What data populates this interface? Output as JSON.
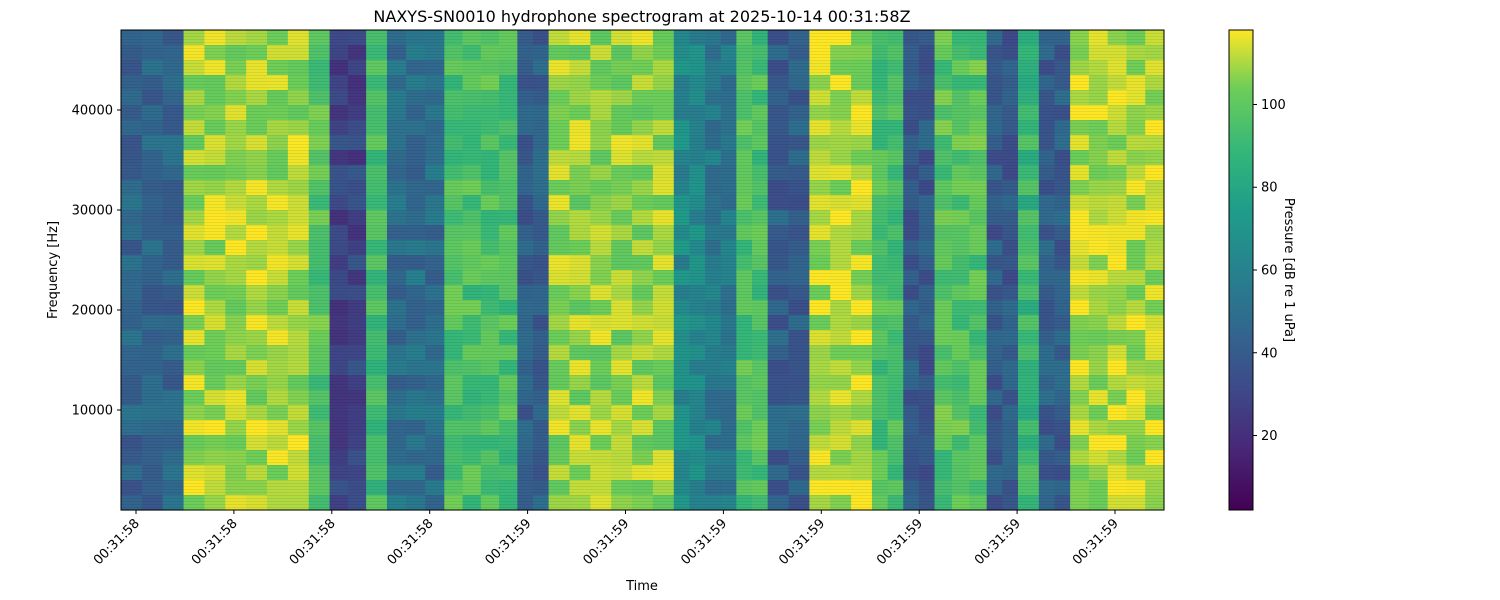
{
  "chart_data": {
    "type": "heatmap",
    "title": "NAXYS-SN0010 hydrophone spectrogram at 2025-10-14 00:31:58Z",
    "xlabel": "Time",
    "ylabel": "Frequency [Hz]",
    "colorbar_label": "Pressure [dB re 1 uPa]",
    "colormap": "viridis",
    "y_range": [
      0,
      48000
    ],
    "y_ticks": [
      10000,
      20000,
      30000,
      40000
    ],
    "x_tick_labels": [
      "00:31:58",
      "00:31:58",
      "00:31:58",
      "00:31:58",
      "00:31:59",
      "00:31:59",
      "00:31:59",
      "00:31:59",
      "00:31:59",
      "00:31:59",
      "00:31:59"
    ],
    "colorbar_range": [
      2,
      118
    ],
    "colorbar_ticks": [
      20,
      40,
      60,
      80,
      100
    ],
    "time_band_levels": [
      {
        "start": 0.0,
        "end": 0.06,
        "level": 45
      },
      {
        "start": 0.06,
        "end": 0.18,
        "level": 110
      },
      {
        "start": 0.18,
        "end": 0.2,
        "level": 98
      },
      {
        "start": 0.2,
        "end": 0.235,
        "level": 30
      },
      {
        "start": 0.235,
        "end": 0.255,
        "level": 95
      },
      {
        "start": 0.255,
        "end": 0.31,
        "level": 50
      },
      {
        "start": 0.31,
        "end": 0.38,
        "level": 96
      },
      {
        "start": 0.38,
        "end": 0.41,
        "level": 42
      },
      {
        "start": 0.41,
        "end": 0.53,
        "level": 108
      },
      {
        "start": 0.53,
        "end": 0.56,
        "level": 65
      },
      {
        "start": 0.56,
        "end": 0.59,
        "level": 55
      },
      {
        "start": 0.59,
        "end": 0.62,
        "level": 96
      },
      {
        "start": 0.62,
        "end": 0.66,
        "level": 42
      },
      {
        "start": 0.66,
        "end": 0.72,
        "level": 112
      },
      {
        "start": 0.72,
        "end": 0.75,
        "level": 95
      },
      {
        "start": 0.75,
        "end": 0.78,
        "level": 40
      },
      {
        "start": 0.78,
        "end": 0.83,
        "level": 98
      },
      {
        "start": 0.83,
        "end": 0.86,
        "level": 40
      },
      {
        "start": 0.86,
        "end": 0.88,
        "level": 90
      },
      {
        "start": 0.88,
        "end": 0.91,
        "level": 42
      },
      {
        "start": 0.91,
        "end": 1.0,
        "level": 112
      }
    ]
  }
}
